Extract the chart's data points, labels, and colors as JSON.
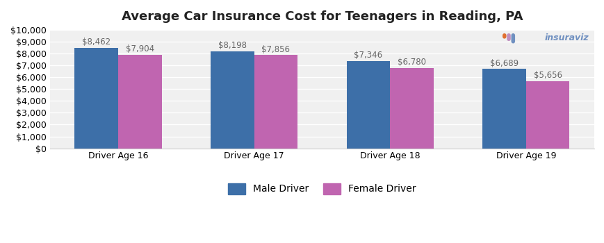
{
  "title": "Average Car Insurance Cost for Teenagers in Reading, PA",
  "categories": [
    "Driver Age 16",
    "Driver Age 17",
    "Driver Age 18",
    "Driver Age 19"
  ],
  "male_values": [
    8462,
    8198,
    7346,
    6689
  ],
  "female_values": [
    7904,
    7856,
    6780,
    5656
  ],
  "male_color": "#3d6fa8",
  "female_color": "#c065b0",
  "bar_label_color": "#666666",
  "ylim": [
    0,
    10000
  ],
  "yticks": [
    0,
    1000,
    2000,
    3000,
    4000,
    5000,
    6000,
    7000,
    8000,
    9000,
    10000
  ],
  "plot_bg_color": "#f0f0f0",
  "fig_bg_color": "#ffffff",
  "grid_color": "#ffffff",
  "legend_labels": [
    "Male Driver",
    "Female Driver"
  ],
  "bar_label_fontsize": 8.5,
  "title_fontsize": 13,
  "tick_fontsize": 9,
  "logo_text": "insuraviz",
  "logo_icon_color_1": "#e07030",
  "logo_icon_color_2": "#c090c0",
  "logo_icon_color_3": "#7090c0",
  "logo_text_color": "#7090c0",
  "bar_width": 0.32
}
